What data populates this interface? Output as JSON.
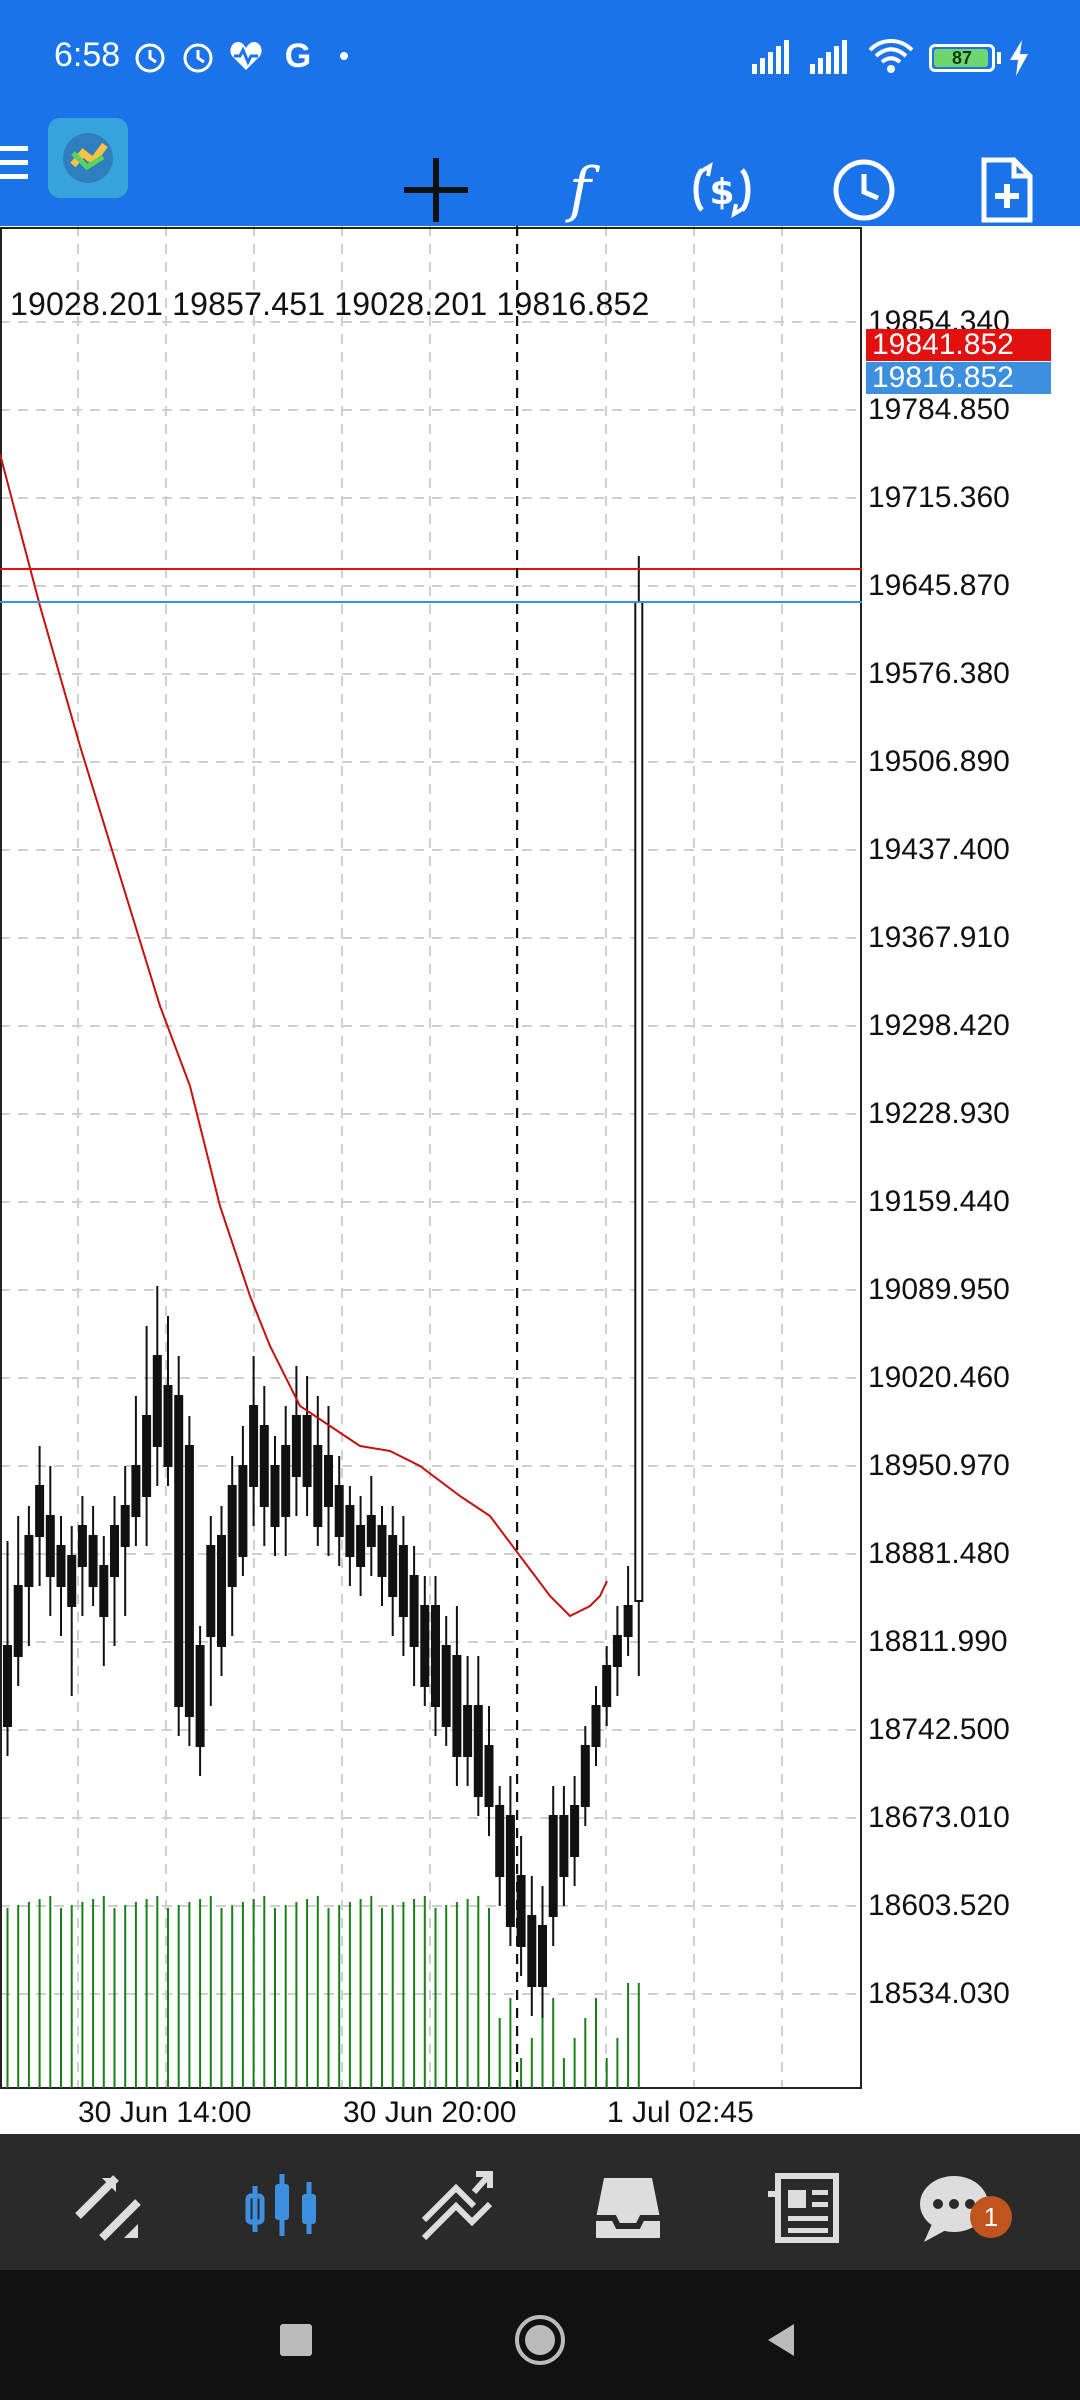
{
  "status_bar": {
    "time": "6:58",
    "battery": "87",
    "icons": [
      "alarm-icon",
      "clock-icon",
      "heart-icon",
      "google-icon",
      "dot-icon",
      "signal-icon",
      "signal-icon-2",
      "wifi-icon",
      "battery-icon",
      "charging-icon"
    ]
  },
  "toolbar": {
    "items": [
      {
        "name": "menu-icon",
        "label": "menu"
      },
      {
        "name": "app-logo",
        "label": "app"
      },
      {
        "name": "crosshair-icon",
        "label": "crosshair"
      },
      {
        "name": "function-icon",
        "label": "f"
      },
      {
        "name": "currency-icon",
        "label": "symbols"
      },
      {
        "name": "timeframe-icon",
        "label": "timeframe"
      },
      {
        "name": "new-order-icon",
        "label": "new order"
      }
    ]
  },
  "chart": {
    "ohlc": "19028.201 19857.451 19028.201 19816.852",
    "current_bid": "19841.852",
    "current_ask": "19816.852",
    "colors": {
      "bid": "#e31010",
      "ask": "#3d8fe0",
      "ma": "#c61010",
      "volume": "#1a7f1a",
      "grid": "#c8c8c8"
    },
    "y_axis": [
      "19854.340",
      "19784.850",
      "19715.360",
      "19645.870",
      "19576.380",
      "19506.890",
      "19437.400",
      "19367.910",
      "19298.420",
      "19228.930",
      "19159.440",
      "19089.950",
      "19020.460",
      "18950.970",
      "18881.480",
      "18811.990",
      "18742.500",
      "18673.010",
      "18603.520",
      "18534.030"
    ],
    "x_axis": [
      "30 Jun 14:00",
      "30 Jun 20:00",
      "1 Jul 02:45"
    ]
  },
  "bottom_nav": {
    "items": [
      {
        "name": "quotes-icon"
      },
      {
        "name": "chart-icon"
      },
      {
        "name": "trade-icon"
      },
      {
        "name": "history-icon"
      },
      {
        "name": "news-icon"
      },
      {
        "name": "chat-icon",
        "badge": "1"
      }
    ]
  }
}
